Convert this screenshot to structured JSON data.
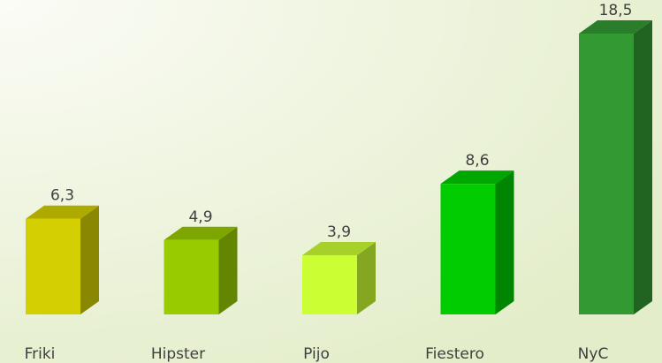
{
  "chart_data": {
    "type": "bar3d",
    "categories": [
      "Friki",
      "Hipster",
      "Pijo",
      "Fiestero",
      "NyC"
    ],
    "values": [
      6.3,
      4.9,
      3.9,
      8.6,
      18.5
    ],
    "value_labels": [
      "6,3",
      "4,9",
      "3,9",
      "8,6",
      "18,5"
    ],
    "colors": [
      "#d4cf00",
      "#99cc00",
      "#ccff33",
      "#00cc00",
      "#339933"
    ]
  }
}
